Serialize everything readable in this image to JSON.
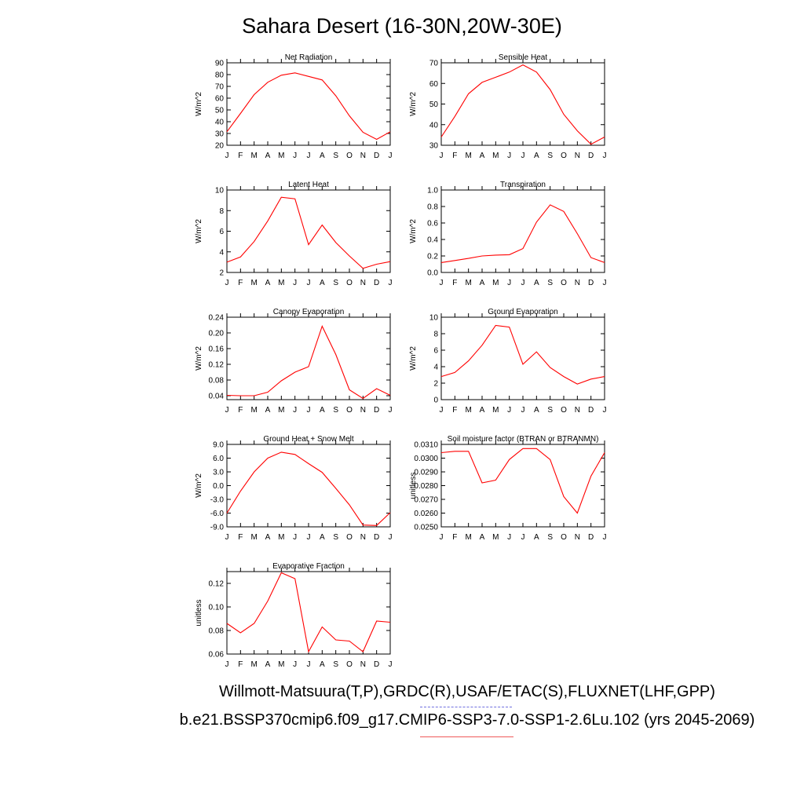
{
  "title": "Sahara Desert (16-30N,20W-30E)",
  "footer": {
    "line1": "Willmott-Matsuura(T,P),GRDC(R),USAF/ETAC(S),FLUXNET(LHF,GPP)",
    "line2": "b.e21.BSSP370cmip6.f09_g17.CMIP6-SSP3-7.0-SSP1-2.6Lu.102 (yrs 2045-2069)"
  },
  "colors": {
    "series": "#ff0000",
    "legend_obs": "#6f6fe0",
    "legend_model": "#f05a5a"
  },
  "chart_data": [
    {
      "type": "line",
      "title": "Net Radiation",
      "ylabel": "W/m^2",
      "categories": [
        "J",
        "F",
        "M",
        "A",
        "M",
        "J",
        "J",
        "A",
        "S",
        "O",
        "N",
        "D",
        "J"
      ],
      "ylim": [
        20,
        90
      ],
      "yticks": [
        "20",
        "30",
        "40",
        "50",
        "60",
        "70",
        "80",
        "90"
      ],
      "values": [
        31.5,
        47,
        63,
        73.5,
        79.5,
        81.5,
        78.5,
        75.5,
        62,
        45,
        31,
        25,
        31.5
      ]
    },
    {
      "type": "line",
      "title": "Sensible Heat",
      "ylabel": "W/m^2",
      "categories": [
        "J",
        "F",
        "M",
        "A",
        "M",
        "J",
        "J",
        "A",
        "S",
        "O",
        "N",
        "D",
        "J"
      ],
      "ylim": [
        30,
        70
      ],
      "yticks": [
        "30",
        "40",
        "50",
        "60",
        "70"
      ],
      "values": [
        34,
        44,
        55,
        60.5,
        63,
        65.5,
        69,
        65.5,
        57,
        45,
        37,
        30.5,
        34
      ]
    },
    {
      "type": "line",
      "title": "Latent Heat",
      "ylabel": "W/m^2",
      "categories": [
        "J",
        "F",
        "M",
        "A",
        "M",
        "J",
        "J",
        "A",
        "S",
        "O",
        "N",
        "D",
        "J"
      ],
      "ylim": [
        2,
        10
      ],
      "yticks": [
        "2",
        "4",
        "6",
        "8",
        "10"
      ],
      "values": [
        3.0,
        3.5,
        5.0,
        7.0,
        9.3,
        9.15,
        4.7,
        6.6,
        4.9,
        3.6,
        2.4,
        2.8,
        3.05
      ]
    },
    {
      "type": "line",
      "title": "Transpiration",
      "ylabel": "W/m^2",
      "categories": [
        "J",
        "F",
        "M",
        "A",
        "M",
        "J",
        "J",
        "A",
        "S",
        "O",
        "N",
        "D",
        "J"
      ],
      "ylim": [
        0,
        1.0
      ],
      "yticks": [
        "0.0",
        "0.2",
        "0.4",
        "0.6",
        "0.8",
        "1.0"
      ],
      "values": [
        0.12,
        0.145,
        0.17,
        0.2,
        0.21,
        0.215,
        0.29,
        0.61,
        0.82,
        0.74,
        0.47,
        0.18,
        0.12
      ]
    },
    {
      "type": "line",
      "title": "Canopy Evaporation",
      "ylabel": "W/m^2",
      "categories": [
        "J",
        "F",
        "M",
        "A",
        "M",
        "J",
        "J",
        "A",
        "S",
        "O",
        "N",
        "D",
        "J"
      ],
      "ylim": [
        0.03,
        0.24
      ],
      "yticks": [
        "0.04",
        "0.08",
        "0.12",
        "0.16",
        "0.20",
        "0.24"
      ],
      "values": [
        0.041,
        0.04,
        0.04,
        0.049,
        0.078,
        0.1,
        0.114,
        0.217,
        0.145,
        0.055,
        0.033,
        0.058,
        0.041
      ]
    },
    {
      "type": "line",
      "title": "Ground Evaporation",
      "ylabel": "W/m^2",
      "categories": [
        "J",
        "F",
        "M",
        "A",
        "M",
        "J",
        "J",
        "A",
        "S",
        "O",
        "N",
        "D",
        "J"
      ],
      "ylim": [
        0,
        10
      ],
      "yticks": [
        "0",
        "2",
        "4",
        "6",
        "8",
        "10"
      ],
      "values": [
        2.8,
        3.3,
        4.7,
        6.6,
        9.0,
        8.8,
        4.3,
        5.8,
        3.9,
        2.8,
        1.9,
        2.5,
        2.8
      ]
    },
    {
      "type": "line",
      "title": "Ground Heat + Snow Melt",
      "ylabel": "W/m^2",
      "categories": [
        "J",
        "F",
        "M",
        "A",
        "M",
        "J",
        "J",
        "A",
        "S",
        "O",
        "N",
        "D",
        "J"
      ],
      "ylim": [
        -9,
        9
      ],
      "yticks": [
        "-9.0",
        "-6.0",
        "-3.0",
        "0.0",
        "3.0",
        "6.0",
        "9.0"
      ],
      "values": [
        -6.0,
        -1.2,
        3.0,
        6.0,
        7.3,
        6.8,
        4.8,
        2.9,
        -0.6,
        -4.2,
        -8.6,
        -8.7,
        -5.9
      ]
    },
    {
      "type": "line",
      "title": "Soil moisture factor (BTRAN or BTRANMN)",
      "ylabel": "unitless",
      "categories": [
        "J",
        "F",
        "M",
        "A",
        "M",
        "J",
        "J",
        "A",
        "S",
        "O",
        "N",
        "D",
        "J"
      ],
      "ylim": [
        0.025,
        0.031
      ],
      "yticks": [
        "0.0250",
        "0.0260",
        "0.0270",
        "0.0280",
        "0.0290",
        "0.0300",
        "0.0310"
      ],
      "values": [
        0.0304,
        0.0305,
        0.0305,
        0.0282,
        0.0284,
        0.0299,
        0.0307,
        0.0307,
        0.0299,
        0.0272,
        0.026,
        0.0287,
        0.0304
      ]
    },
    {
      "type": "line",
      "title": "Evaporative Fraction",
      "ylabel": "unitless",
      "categories": [
        "J",
        "F",
        "M",
        "A",
        "M",
        "J",
        "J",
        "A",
        "S",
        "O",
        "N",
        "D",
        "J"
      ],
      "ylim": [
        0.06,
        0.13
      ],
      "yticks": [
        "0.06",
        "0.08",
        "0.10",
        "0.12"
      ],
      "values": [
        0.086,
        0.078,
        0.086,
        0.105,
        0.129,
        0.124,
        0.062,
        0.083,
        0.072,
        0.071,
        0.062,
        0.088,
        0.087
      ]
    }
  ]
}
